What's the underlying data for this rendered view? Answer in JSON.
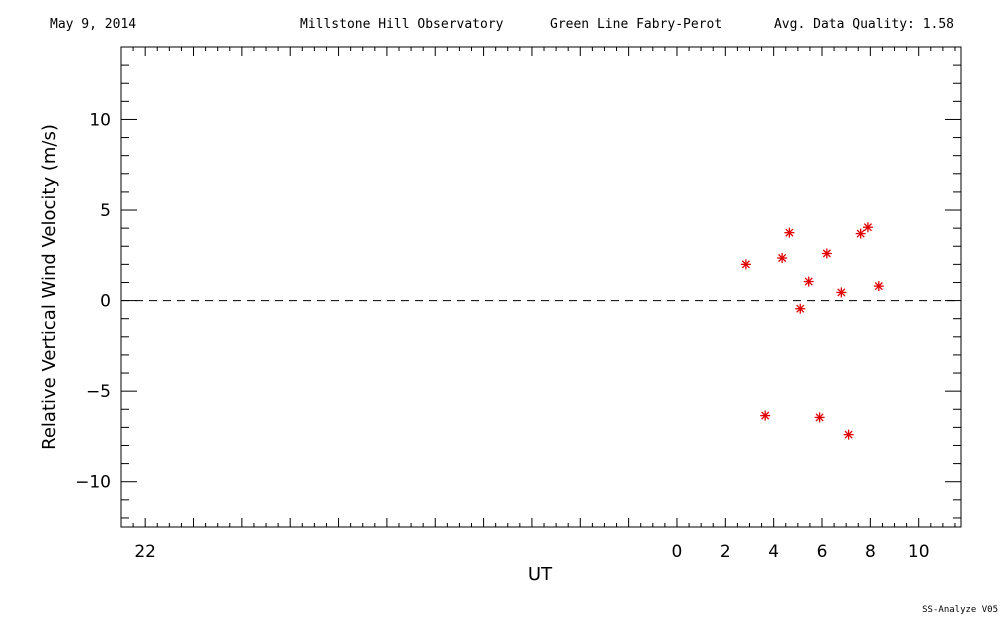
{
  "header": {
    "date": "May 9, 2014",
    "observatory": "Millstone Hill Observatory",
    "instrument": "Green Line Fabry-Perot",
    "quality": "Avg. Data Quality: 1.58"
  },
  "footer": {
    "version": "SS-Analyze V05"
  },
  "chart_data": {
    "type": "scatter",
    "xlabel": "UT",
    "ylabel": "Relative Vertical Wind Velocity (m/s)",
    "xlim": [
      -23,
      11.75
    ],
    "ylim": [
      -12.5,
      14
    ],
    "x_ticks": [
      -22,
      0,
      2,
      4,
      6,
      8,
      10
    ],
    "x_tick_labels": [
      "22",
      "0",
      "2",
      "4",
      "6",
      "8",
      "10"
    ],
    "y_ticks": [
      -10,
      -5,
      0,
      5,
      10
    ],
    "y_tick_labels": [
      "−10",
      "−5",
      "0",
      "5",
      "10"
    ],
    "reference_line": {
      "y": 0,
      "style": "dashed"
    },
    "marker_color": "#e00000",
    "series": [
      {
        "points": [
          {
            "x": 2.85,
            "y": 2.0
          },
          {
            "x": 3.65,
            "y": -6.35
          },
          {
            "x": 4.35,
            "y": 2.35
          },
          {
            "x": 4.65,
            "y": 3.75
          },
          {
            "x": 5.1,
            "y": -0.45
          },
          {
            "x": 5.45,
            "y": 1.05
          },
          {
            "x": 5.9,
            "y": -6.45
          },
          {
            "x": 6.2,
            "y": 2.6
          },
          {
            "x": 6.8,
            "y": 0.45
          },
          {
            "x": 7.1,
            "y": -7.4
          },
          {
            "x": 7.6,
            "y": 3.7
          },
          {
            "x": 7.9,
            "y": 4.05
          },
          {
            "x": 8.35,
            "y": 0.8
          }
        ]
      }
    ]
  }
}
